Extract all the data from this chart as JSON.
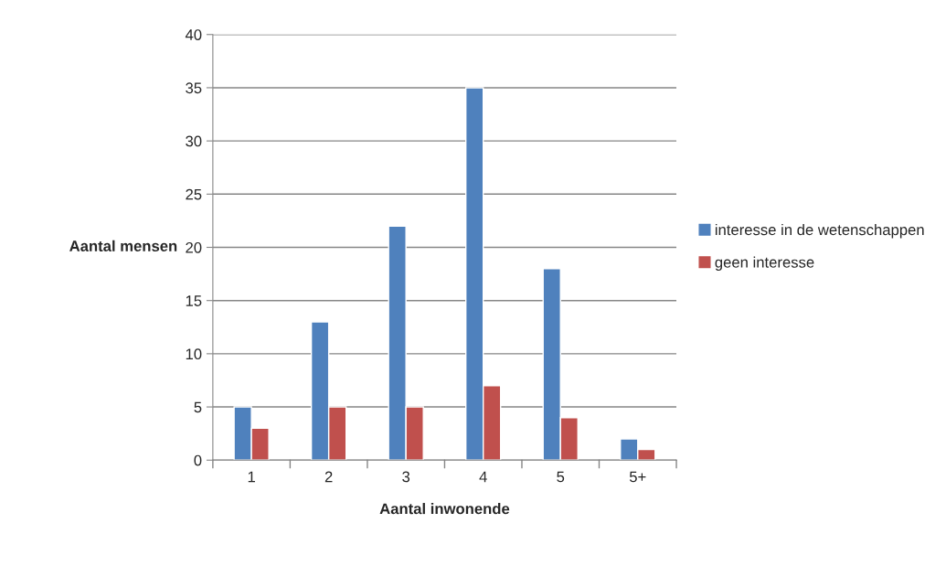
{
  "chart_data": {
    "type": "bar",
    "xlabel": "Aantal inwonende",
    "ylabel": "Aantal mensen",
    "categories": [
      "1",
      "2",
      "3",
      "4",
      "5",
      "5+"
    ],
    "series": [
      {
        "name": "interesse in de wetenschappen",
        "color": "#4f81bd",
        "values": [
          5,
          13,
          22,
          35,
          18,
          2
        ]
      },
      {
        "name": "geen interesse",
        "color": "#c0504d",
        "values": [
          3,
          5,
          5,
          7,
          4,
          1
        ]
      }
    ],
    "ylim": [
      0,
      40
    ],
    "yticks": [
      0,
      5,
      10,
      15,
      20,
      25,
      30,
      35,
      40
    ],
    "grid": "y",
    "legend": "right"
  }
}
